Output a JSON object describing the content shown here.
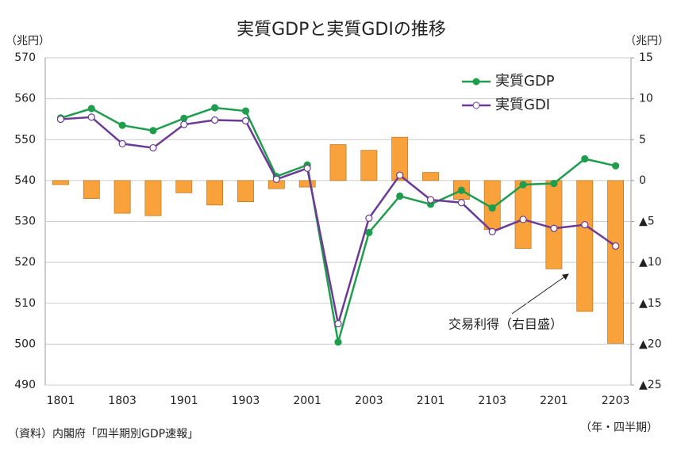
{
  "chart_data": {
    "type": "combo",
    "title": "実質GDPと実質GDIの推移",
    "y_label": "（兆円）",
    "y2_label": "（兆円）",
    "x_label": "（年・四半期）",
    "source": "（資料）内閣府「四半期別GDP速報」",
    "annotation": "交易利得（右目盛）",
    "categories": [
      "1801",
      null,
      "1803",
      null,
      "1901",
      null,
      "1903",
      null,
      "2001",
      null,
      "2003",
      null,
      "2101",
      null,
      "2103",
      null,
      "2201",
      null,
      "2203"
    ],
    "ylim": [
      490,
      570
    ],
    "yticks": [
      490,
      500,
      510,
      520,
      530,
      540,
      550,
      560,
      570
    ],
    "y2lim": [
      -25,
      15
    ],
    "y2ticks": [
      {
        "value": -25,
        "label": "▲25"
      },
      {
        "value": -20,
        "label": "▲20"
      },
      {
        "value": -15,
        "label": "▲15"
      },
      {
        "value": -10,
        "label": "▲10"
      },
      {
        "value": -5,
        "label": "▲5"
      },
      0,
      5,
      10,
      15
    ],
    "grid": true,
    "series": [
      {
        "name": "交易利得",
        "type": "bar",
        "axis": "y2",
        "color": "#f9a23b",
        "values": [
          -0.5,
          -2.2,
          -4.0,
          -4.3,
          -1.5,
          -3.0,
          -2.6,
          -1.0,
          -0.8,
          4.4,
          3.7,
          5.3,
          1.0,
          -2.3,
          -6.0,
          -8.3,
          -10.8,
          -16.0,
          -19.9
        ]
      },
      {
        "name": "実質GDP",
        "type": "line",
        "color": "#1e9e4c",
        "marker": "filled",
        "values": [
          555.3,
          557.6,
          553.5,
          552.2,
          555.2,
          557.8,
          557.0,
          541.0,
          543.8,
          500.5,
          527.3,
          536.2,
          534.2,
          537.6,
          533.3,
          539.0,
          539.3,
          545.3,
          543.6
        ]
      },
      {
        "name": "実質GDI",
        "type": "line",
        "color": "#6b3a96",
        "marker": "open",
        "values": [
          555.0,
          555.5,
          549.0,
          548.0,
          553.7,
          554.8,
          554.6,
          540.3,
          543.0,
          505.0,
          530.8,
          541.3,
          535.3,
          534.6,
          527.5,
          530.5,
          528.3,
          529.2,
          524.0
        ]
      }
    ]
  }
}
